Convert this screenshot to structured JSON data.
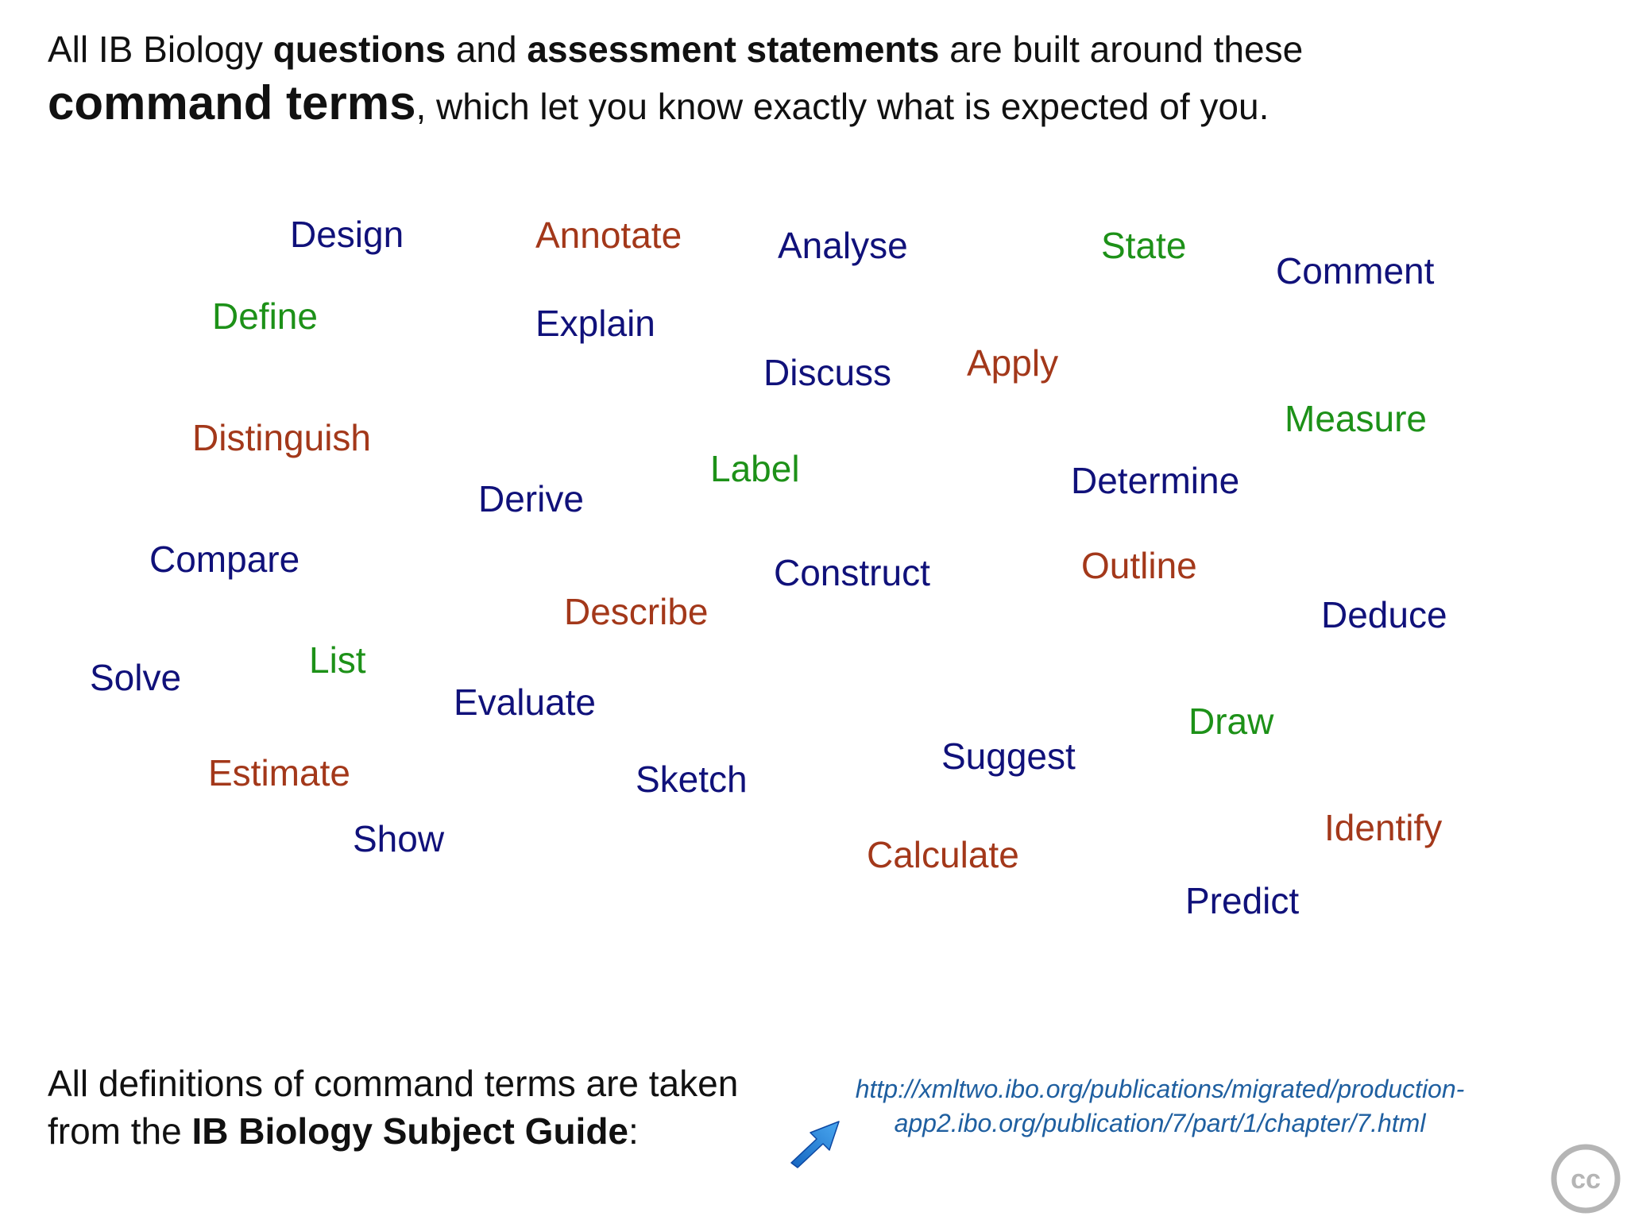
{
  "intro": {
    "t1": "All IB Biology ",
    "t2": "questions",
    "t3": " and ",
    "t4": "assessment statements",
    "t5": " are built around these",
    "t6": "command terms",
    "t7": ", which let you know exactly what is expected of you."
  },
  "colors": {
    "navy": "#10117a",
    "rust": "#a3381a",
    "green": "#1d9118",
    "link": "#1f5fa0"
  },
  "terms": [
    {
      "label": "Design",
      "color": "navy"
    },
    {
      "label": "Annotate",
      "color": "rust"
    },
    {
      "label": "Analyse",
      "color": "navy"
    },
    {
      "label": "State",
      "color": "green"
    },
    {
      "label": "Comment",
      "color": "navy"
    },
    {
      "label": "Define",
      "color": "green"
    },
    {
      "label": "Explain",
      "color": "navy"
    },
    {
      "label": "Discuss",
      "color": "navy"
    },
    {
      "label": "Apply",
      "color": "rust"
    },
    {
      "label": "Measure",
      "color": "green"
    },
    {
      "label": "Distinguish",
      "color": "rust"
    },
    {
      "label": "Label",
      "color": "green"
    },
    {
      "label": "Derive",
      "color": "navy"
    },
    {
      "label": "Determine",
      "color": "navy"
    },
    {
      "label": "Compare",
      "color": "navy"
    },
    {
      "label": "Construct",
      "color": "navy"
    },
    {
      "label": "Outline",
      "color": "rust"
    },
    {
      "label": "Describe",
      "color": "rust"
    },
    {
      "label": "Deduce",
      "color": "navy"
    },
    {
      "label": "List",
      "color": "green"
    },
    {
      "label": "Solve",
      "color": "navy"
    },
    {
      "label": "Evaluate",
      "color": "navy"
    },
    {
      "label": "Draw",
      "color": "green"
    },
    {
      "label": "Suggest",
      "color": "navy"
    },
    {
      "label": "Estimate",
      "color": "rust"
    },
    {
      "label": "Sketch",
      "color": "navy"
    },
    {
      "label": "Identify",
      "color": "rust"
    },
    {
      "label": "Show",
      "color": "navy"
    },
    {
      "label": "Calculate",
      "color": "rust"
    },
    {
      "label": "Predict",
      "color": "navy"
    }
  ],
  "footer": {
    "t1": "All definitions of command terms are taken",
    "t2": "from the ",
    "t3": "IB Biology Subject Guide",
    "t4": ":"
  },
  "link": {
    "line1": "http://xmltwo.ibo.org/publications/migrated/production-",
    "line2": "app2.ibo.org/publication/7/part/1/chapter/7.html"
  },
  "icons": {
    "arrow": "arrow-pointer-icon",
    "license": "creative-commons-icon"
  },
  "cc_text": "cc"
}
